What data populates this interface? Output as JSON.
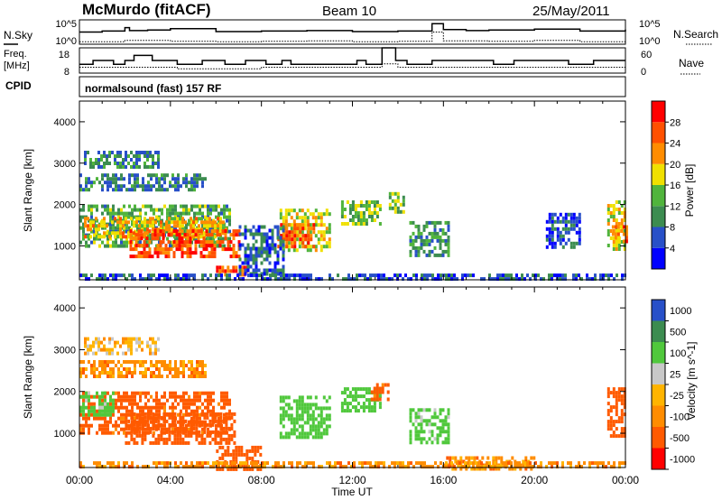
{
  "header": {
    "station": "McMurdo (fitACF)",
    "beam": "Beam 10",
    "date": "25/May/2011"
  },
  "panels": {
    "nsky_label": "N.Sky",
    "nsearch_label": "N.Search",
    "noise_ticks": [
      "10^5",
      "10^0"
    ],
    "freq_label": "Freq.",
    "freq_unit": "[MHz]",
    "freq_ticks": [
      "18",
      "8"
    ],
    "nave_label": "Nave",
    "nave_ticks": [
      "60",
      "0"
    ],
    "cpid_label": "CPID",
    "cpid_value": "normalsound (fast) 157 RF"
  },
  "colors": {
    "power_scale": [
      "#0000ff",
      "#2850c8",
      "#3c8c50",
      "#50b43c",
      "#f0e000",
      "#ff8c00",
      "#ff5000",
      "#ff0000"
    ],
    "velocity_scale": [
      "#ff0000",
      "#ff5a00",
      "#ff8c00",
      "#ffb400",
      "#c8c8c8",
      "#50c83c",
      "#3c8c50",
      "#2850c8"
    ]
  },
  "chart_data": [
    {
      "type": "heatmap",
      "title": "Power",
      "ylabel": "Slant Range [km]",
      "xlabel": "",
      "x_range": [
        "00:00",
        "24:00"
      ],
      "ylim": [
        180,
        4500
      ],
      "y_ticks": [
        1000,
        2000,
        3000,
        4000
      ],
      "x_ticks": [
        "00:00",
        "04:00",
        "08:00",
        "12:00",
        "16:00",
        "20:00",
        "00:00"
      ],
      "colorbar": {
        "label": "Power [dB]",
        "ticks": [
          4,
          8,
          12,
          16,
          20,
          24,
          28
        ],
        "range": [
          0,
          32
        ]
      },
      "regions": [
        {
          "t0": 0.0,
          "t1": 6.6,
          "r0": 1000,
          "r1": 2000,
          "v": 12
        },
        {
          "t0": 0.2,
          "t1": 6.4,
          "r0": 1200,
          "r1": 1700,
          "v": 20
        },
        {
          "t0": 2.2,
          "t1": 7.0,
          "r0": 750,
          "r1": 1400,
          "v": 26
        },
        {
          "t0": 6.0,
          "t1": 7.4,
          "r0": 300,
          "r1": 520,
          "v": 27
        },
        {
          "t0": 0.2,
          "t1": 3.5,
          "r0": 2950,
          "r1": 3300,
          "v": 10
        },
        {
          "t0": 0.0,
          "t1": 5.5,
          "r0": 2350,
          "r1": 2750,
          "v": 9
        },
        {
          "t0": 8.8,
          "t1": 11.0,
          "r0": 900,
          "r1": 1900,
          "v": 17
        },
        {
          "t0": 8.7,
          "t1": 10.3,
          "r0": 1000,
          "r1": 1550,
          "v": 25
        },
        {
          "t0": 11.5,
          "t1": 13.2,
          "r0": 1500,
          "r1": 2100,
          "v": 14
        },
        {
          "t0": 13.6,
          "t1": 14.3,
          "r0": 1800,
          "r1": 2300,
          "v": 13
        },
        {
          "t0": 14.5,
          "t1": 16.2,
          "r0": 800,
          "r1": 1600,
          "v": 11
        },
        {
          "t0": 7.0,
          "t1": 9.0,
          "r0": 350,
          "r1": 1500,
          "v": 7
        },
        {
          "t0": 20.5,
          "t1": 22.0,
          "r0": 1000,
          "r1": 1800,
          "v": 6
        },
        {
          "t0": 23.2,
          "t1": 24.0,
          "r0": 900,
          "r1": 2100,
          "v": 18
        },
        {
          "t0": 23.4,
          "t1": 24.0,
          "r0": 1100,
          "r1": 1500,
          "v": 24
        },
        {
          "t0": 0.0,
          "t1": 24.0,
          "r0": 180,
          "r1": 330,
          "v": 6
        }
      ]
    },
    {
      "type": "heatmap",
      "title": "Velocity",
      "ylabel": "Slant Range [km]",
      "xlabel": "Time UT",
      "x_range": [
        "00:00",
        "24:00"
      ],
      "ylim": [
        180,
        4500
      ],
      "y_ticks": [
        1000,
        2000,
        3000,
        4000
      ],
      "x_ticks": [
        "00:00",
        "04:00",
        "08:00",
        "12:00",
        "16:00",
        "20:00",
        "00:00"
      ],
      "colorbar": {
        "label": "Velocity [m s^-1]",
        "ticks": [
          "1000",
          "500",
          "100",
          "25",
          "-25",
          "-100",
          "-500",
          "-1000"
        ]
      },
      "regions": [
        {
          "t0": 0.0,
          "t1": 6.6,
          "r0": 1000,
          "r1": 2000,
          "v": -150
        },
        {
          "t0": 2.0,
          "t1": 6.8,
          "r0": 750,
          "r1": 1500,
          "v": -300
        },
        {
          "t0": 0.0,
          "t1": 1.5,
          "r0": 1400,
          "r1": 2000,
          "v": 150
        },
        {
          "t0": 0.2,
          "t1": 3.5,
          "r0": 2950,
          "r1": 3300,
          "v": 0
        },
        {
          "t0": 0.0,
          "t1": 5.5,
          "r0": 2350,
          "r1": 2750,
          "v": -60
        },
        {
          "t0": 6.0,
          "t1": 8.0,
          "r0": 180,
          "r1": 700,
          "v": -200
        },
        {
          "t0": 8.8,
          "t1": 11.0,
          "r0": 900,
          "r1": 1900,
          "v": 300
        },
        {
          "t0": 11.5,
          "t1": 13.2,
          "r0": 1500,
          "r1": 2100,
          "v": 300
        },
        {
          "t0": 12.8,
          "t1": 13.6,
          "r0": 1800,
          "r1": 2200,
          "v": -150
        },
        {
          "t0": 14.5,
          "t1": 16.2,
          "r0": 800,
          "r1": 1600,
          "v": 150
        },
        {
          "t0": 16.0,
          "t1": 20.0,
          "r0": 180,
          "r1": 450,
          "v": -60
        },
        {
          "t0": 23.2,
          "t1": 24.0,
          "r0": 900,
          "r1": 2100,
          "v": -300
        },
        {
          "t0": 0.0,
          "t1": 24.0,
          "r0": 180,
          "r1": 330,
          "v": -60
        }
      ]
    },
    {
      "type": "line",
      "title": "N.Sky / N.Search",
      "x_range": [
        "00:00",
        "24:00"
      ],
      "series": [
        {
          "name": "N.Sky",
          "x": [
            0,
            1,
            2,
            2.2,
            3,
            4,
            6,
            8,
            10,
            12,
            14,
            15.5,
            16,
            17,
            18,
            20,
            22,
            24
          ],
          "values": [
            2.5,
            2.7,
            3.4,
            2.8,
            2.9,
            3.2,
            2.6,
            2.7,
            2.8,
            2.6,
            2.7,
            4.2,
            3.0,
            2.8,
            2.9,
            3.1,
            2.7,
            3.0
          ]
        },
        {
          "name": "N.Search",
          "x": [
            0,
            2,
            4,
            6,
            8,
            10,
            12,
            14,
            15.5,
            16,
            18,
            20,
            22,
            24
          ],
          "values": [
            0.5,
            0.8,
            0.6,
            0.5,
            0.6,
            0.7,
            0.5,
            0.6,
            2.5,
            0.7,
            0.6,
            0.8,
            0.5,
            0.6
          ]
        }
      ]
    },
    {
      "type": "line",
      "title": "Freq. / Nave",
      "x_range": [
        "00:00",
        "24:00"
      ],
      "series": [
        {
          "name": "Freq.",
          "x": [
            0,
            0.6,
            1.5,
            2,
            2.4,
            3.2,
            4.3,
            5.4,
            6.4,
            7.3,
            8.2,
            8.9,
            9.3,
            12.2,
            12.6,
            13.3,
            13.9,
            14.4,
            15.5,
            18.2,
            19.1,
            21.5,
            22.6,
            24
          ],
          "values": [
            11.5,
            13,
            11.5,
            13,
            15,
            13,
            11.5,
            13,
            11.5,
            13,
            11.5,
            13,
            11.5,
            13,
            11.5,
            18,
            13,
            11.5,
            13,
            11.5,
            13,
            11.5,
            13,
            13
          ]
        },
        {
          "name": "Nave",
          "x": [
            0,
            4,
            4.3,
            8,
            12,
            13.3,
            14,
            16,
            20,
            24
          ],
          "values": [
            14,
            14,
            10,
            14,
            14,
            22,
            14,
            14,
            14,
            14
          ]
        }
      ]
    }
  ]
}
